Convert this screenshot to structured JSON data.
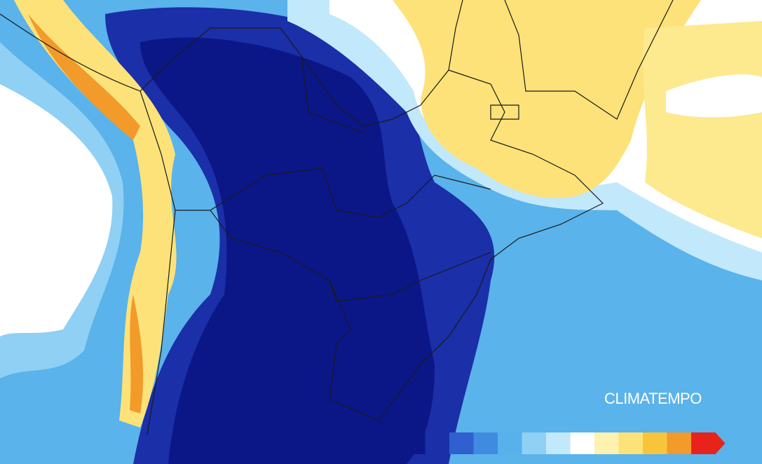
{
  "brand": {
    "logo": "CLIMATEMPO"
  },
  "legend": {
    "colors": [
      "#0b1787",
      "#1a2fa8",
      "#2f5fd0",
      "#3f8be0",
      "#58b0ec",
      "#8fd0f4",
      "#c2e8fb",
      "#ffffff",
      "#fff1b0",
      "#fde27a",
      "#f8c53a",
      "#f29a2a",
      "#e8231c"
    ]
  }
}
